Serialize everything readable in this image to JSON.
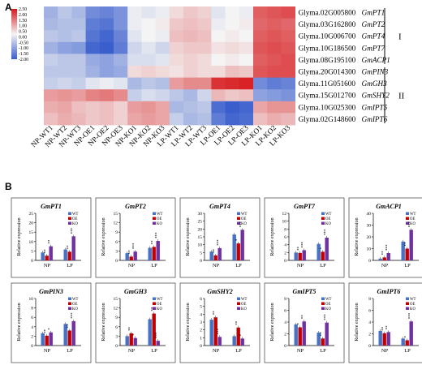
{
  "panel_labels": {
    "a": "A",
    "b": "B"
  },
  "heatmap": {
    "colorscale": {
      "low": "#3a5fcd",
      "mid": "#f4f4f4",
      "high": "#d7191c"
    },
    "colorbar_ticks": [
      "2.50",
      "2.00",
      "1.50",
      "1.00",
      "0.50",
      "0.00",
      "-0.50",
      "-1.00",
      "-1.50",
      "-2.00"
    ],
    "columns": [
      "NP-WT1",
      "NP-WT2",
      "NP-WT3",
      "NP-OE1",
      "NP-OE2",
      "NP-OE3",
      "NP-KO1",
      "NP-KO2",
      "NP-KO3",
      "LP-WT1",
      "LP-WT2",
      "LP-WT3",
      "LP-OE1",
      "LP-OE2",
      "LP-OE3",
      "LP-KO1",
      "LP-KO2",
      "LP-KO3"
    ],
    "rows": [
      {
        "id": "Glyma.02G005800",
        "gene": "GmPT1"
      },
      {
        "id": "Glyma.03G162800",
        "gene": "GmPT2"
      },
      {
        "id": "Glyma.10G006700",
        "gene": "GmPT4"
      },
      {
        "id": "Glyma.10G186500",
        "gene": "GmPT7"
      },
      {
        "id": "Glyma.08G195100",
        "gene": "GmACP1"
      },
      {
        "id": "Glyma.20G014300",
        "gene": "GmPIN3"
      },
      {
        "id": "Glyma.11G051600",
        "gene": "GmGH3"
      },
      {
        "id": "Glyma.15G012700",
        "gene": "GmSHY2"
      },
      {
        "id": "Glyma.10G025300",
        "gene": "GmIPT5"
      },
      {
        "id": "Glyma.02G148600",
        "gene": "GmIPT6"
      }
    ],
    "groups": [
      {
        "label": "I",
        "rows": [
          0,
          4
        ]
      },
      {
        "label": "II",
        "rows": [
          5,
          9
        ]
      }
    ],
    "values": [
      [
        -0.9,
        -0.6,
        -0.8,
        -1.4,
        -1.5,
        -1.3,
        -0.1,
        -0.2,
        -0.1,
        0.3,
        0.5,
        0.4,
        -0.2,
        0.0,
        -0.1,
        1.7,
        1.8,
        1.9
      ],
      [
        -0.8,
        -0.7,
        -0.7,
        -1.6,
        -1.7,
        -1.3,
        -0.1,
        0.0,
        0.1,
        0.5,
        0.6,
        0.5,
        -0.1,
        0.0,
        0.1,
        1.6,
        1.7,
        1.6
      ],
      [
        -0.6,
        -0.7,
        -0.6,
        -1.7,
        -1.9,
        -1.5,
        -0.2,
        0.0,
        -0.1,
        0.6,
        0.7,
        0.6,
        0.0,
        0.1,
        0.0,
        1.7,
        1.8,
        1.7
      ],
      [
        -0.9,
        -1.1,
        -1.2,
        -1.9,
        -2.0,
        -1.6,
        -0.4,
        -0.2,
        -0.4,
        0.4,
        0.5,
        0.5,
        0.2,
        0.3,
        0.2,
        1.8,
        1.9,
        1.8
      ],
      [
        -0.5,
        -0.6,
        -0.6,
        -1.0,
        -1.1,
        -0.9,
        -0.3,
        -0.3,
        -0.2,
        0.3,
        0.4,
        0.3,
        0.0,
        0.1,
        0.0,
        1.7,
        1.8,
        1.9
      ],
      [
        -0.6,
        -0.6,
        -0.6,
        -0.9,
        -1.1,
        -1.0,
        0.3,
        0.4,
        0.3,
        0.2,
        0.4,
        0.3,
        0.3,
        0.6,
        0.5,
        1.8,
        1.9,
        1.9
      ],
      [
        -0.5,
        -0.4,
        -0.5,
        -0.2,
        -0.1,
        -0.2,
        -0.8,
        -0.6,
        -0.7,
        1.0,
        1.2,
        1.2,
        2.2,
        2.3,
        2.4,
        -1.4,
        -1.6,
        -1.5
      ],
      [
        1.0,
        1.1,
        1.0,
        1.3,
        1.4,
        1.2,
        -0.5,
        -0.3,
        -0.4,
        -0.6,
        -0.8,
        -0.4,
        0.7,
        0.5,
        0.6,
        -1.1,
        -1.2,
        -1.3
      ],
      [
        0.8,
        0.9,
        0.6,
        0.5,
        0.6,
        0.4,
        1.0,
        1.1,
        0.9,
        -0.8,
        -0.7,
        -0.6,
        -1.8,
        -2.0,
        -1.9,
        0.9,
        1.1,
        1.1
      ],
      [
        0.6,
        0.8,
        0.7,
        0.5,
        0.6,
        0.4,
        0.9,
        1.0,
        0.9,
        -0.5,
        -0.8,
        -0.7,
        -1.6,
        -1.9,
        -1.8,
        0.6,
        0.8,
        0.7
      ]
    ]
  },
  "bars": {
    "ylabel": "Relative expression",
    "categories": [
      "NP",
      "LP"
    ],
    "legend": [
      "WT",
      "OE",
      "KO"
    ],
    "colors": [
      "#4472c4",
      "#c00000",
      "#7030a0"
    ],
    "panels": [
      {
        "title": "GmPT1",
        "ymax": 25,
        "ticks": [
          0,
          5,
          10,
          15,
          20,
          25
        ],
        "values": [
          [
            4.2,
            2.5,
            7.5
          ],
          [
            5.8,
            4.6,
            12.8
          ]
        ],
        "stars": [
          [
            "",
            "**",
            "**"
          ],
          [
            "",
            "**",
            "***"
          ]
        ]
      },
      {
        "title": "GmPT2",
        "ymax": 15,
        "ticks": [
          0,
          3,
          6,
          9,
          12,
          15
        ],
        "values": [
          [
            2.3,
            1.2,
            2.8
          ],
          [
            4.0,
            4.3,
            6.2
          ]
        ],
        "stars": [
          [
            "",
            "**",
            "***"
          ],
          [
            "",
            "**",
            "***"
          ]
        ]
      },
      {
        "title": "GmPT4",
        "ymax": 30,
        "ticks": [
          0,
          5,
          10,
          15,
          20,
          25,
          30
        ],
        "values": [
          [
            5.6,
            3.2,
            7.8
          ],
          [
            16.5,
            10.8,
            19.5
          ]
        ],
        "stars": [
          [
            "",
            "**",
            "***"
          ],
          [
            "",
            "*",
            "***"
          ]
        ]
      },
      {
        "title": "GmPT7",
        "ymax": 12,
        "ticks": [
          0,
          2,
          4,
          6,
          8,
          10,
          12
        ],
        "values": [
          [
            2.0,
            1.9,
            2.6
          ],
          [
            4.2,
            2.2,
            5.8
          ]
        ],
        "stars": [
          [
            "",
            "**",
            "***"
          ],
          [
            "",
            "*",
            "***"
          ]
        ]
      },
      {
        "title": "GmACP1",
        "ymax": 40,
        "ticks": [
          0,
          10,
          20,
          30,
          40
        ],
        "values": [
          [
            1.5,
            2.5,
            6.2
          ],
          [
            16.0,
            10.0,
            26.0
          ]
        ],
        "stars": [
          [
            "",
            "**",
            "***"
          ],
          [
            "",
            "**",
            "***"
          ]
        ]
      },
      {
        "title": "GmPIN3",
        "ymax": 10,
        "ticks": [
          0,
          2,
          4,
          6,
          8,
          10
        ],
        "values": [
          [
            2.6,
            2.1,
            2.8
          ],
          [
            4.6,
            3.2,
            5.2
          ]
        ],
        "stars": [
          [
            "",
            "**",
            "*"
          ],
          [
            "",
            "**",
            "***"
          ]
        ]
      },
      {
        "title": "GmGH3",
        "ymax": 15,
        "ticks": [
          0,
          3,
          6,
          9,
          12,
          15
        ],
        "values": [
          [
            3.0,
            3.9,
            2.4
          ],
          [
            8.4,
            10.2,
            1.5
          ]
        ],
        "stars": [
          [
            "",
            "**",
            "*"
          ],
          [
            "",
            "**",
            "***"
          ]
        ]
      },
      {
        "title": "GmSHY2",
        "ymax": 6,
        "ticks": [
          0,
          1,
          2,
          3,
          4,
          5,
          6
        ],
        "values": [
          [
            3.3,
            3.6,
            1.1
          ],
          [
            1.2,
            2.3,
            0.9
          ]
        ],
        "stars": [
          [
            "",
            "**",
            "***"
          ],
          [
            "",
            "**",
            "*"
          ]
        ]
      },
      {
        "title": "GmIPT5",
        "ymax": 8,
        "ticks": [
          0,
          2,
          4,
          6,
          8
        ],
        "values": [
          [
            3.6,
            3.1,
            4.1
          ],
          [
            2.2,
            1.2,
            3.9
          ]
        ],
        "stars": [
          [
            "",
            "*",
            "**"
          ],
          [
            "",
            "**",
            "***"
          ]
        ]
      },
      {
        "title": "GmIPT6",
        "ymax": 8,
        "ticks": [
          0,
          2,
          4,
          6,
          8
        ],
        "values": [
          [
            2.5,
            2.1,
            2.3
          ],
          [
            1.2,
            0.9,
            4.1
          ]
        ],
        "stars": [
          [
            "",
            "**",
            "**"
          ],
          [
            "",
            "*",
            "***"
          ]
        ]
      }
    ]
  },
  "chart_data": [
    {
      "type": "heatmap",
      "x": [
        "NP-WT1",
        "NP-WT2",
        "NP-WT3",
        "NP-OE1",
        "NP-OE2",
        "NP-OE3",
        "NP-KO1",
        "NP-KO2",
        "NP-KO3",
        "LP-WT1",
        "LP-WT2",
        "LP-WT3",
        "LP-OE1",
        "LP-OE2",
        "LP-OE3",
        "LP-KO1",
        "LP-KO2",
        "LP-KO3"
      ],
      "y": [
        "Glyma.02G005800 GmPT1",
        "Glyma.03G162800 GmPT2",
        "Glyma.10G006700 GmPT4",
        "Glyma.10G186500 GmPT7",
        "Glyma.08G195100 GmACP1",
        "Glyma.20G014300 GmPIN3",
        "Glyma.11G051600 GmGH3",
        "Glyma.15G012700 GmSHY2",
        "Glyma.10G025300 GmIPT5",
        "Glyma.02G148600 GmIPT6"
      ],
      "zlim": [
        -2,
        2.5
      ]
    },
    {
      "type": "bar",
      "categories": [
        "NP",
        "LP"
      ],
      "series_names": [
        "WT",
        "OE",
        "KO"
      ],
      "ylabel": "Relative expression",
      "panels": [
        "GmPT1",
        "GmPT2",
        "GmPT4",
        "GmPT7",
        "GmACP1",
        "GmPIN3",
        "GmGH3",
        "GmSHY2",
        "GmIPT5",
        "GmIPT6"
      ]
    }
  ]
}
